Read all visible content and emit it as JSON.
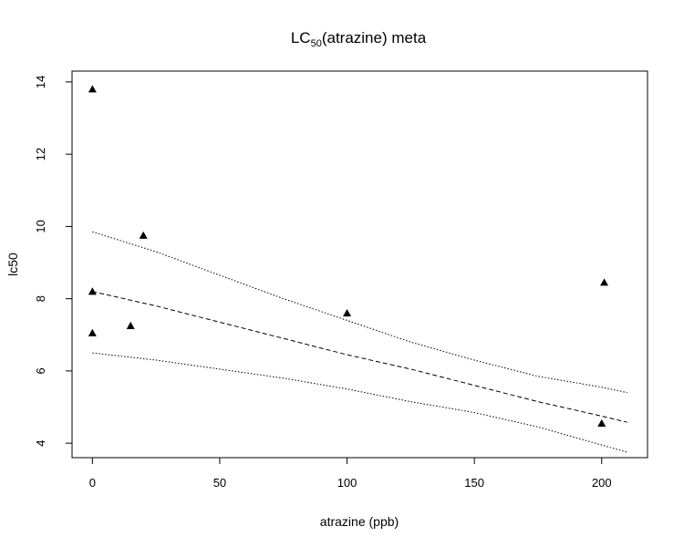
{
  "chart_data": {
    "type": "scatter",
    "title": {
      "main": "LC",
      "subscript": "50",
      "rest": "(atrazine) meta"
    },
    "xlabel": "atrazine (ppb)",
    "ylabel": "lc50",
    "xlim": [
      -8,
      218
    ],
    "ylim": [
      3.6,
      14.3
    ],
    "xticks": [
      0,
      50,
      100,
      150,
      200
    ],
    "yticks": [
      4,
      6,
      8,
      10,
      12,
      14
    ],
    "grid": false,
    "marker": "filled-triangle",
    "points": [
      {
        "x": 0,
        "y": 13.8
      },
      {
        "x": 0,
        "y": 8.2
      },
      {
        "x": 0,
        "y": 7.05
      },
      {
        "x": 15,
        "y": 7.25
      },
      {
        "x": 20,
        "y": 9.75
      },
      {
        "x": 100,
        "y": 7.6
      },
      {
        "x": 200,
        "y": 4.55
      },
      {
        "x": 201,
        "y": 8.45
      }
    ],
    "series": [
      {
        "style": "dashed",
        "x": [
          0,
          25,
          50,
          75,
          100,
          125,
          150,
          175,
          200,
          210
        ],
        "y": [
          8.2,
          7.8,
          7.35,
          6.9,
          6.45,
          6.05,
          5.6,
          5.15,
          4.75,
          4.58
        ]
      },
      {
        "style": "dotted",
        "x": [
          0,
          25,
          50,
          75,
          100,
          125,
          150,
          175,
          200,
          210
        ],
        "y": [
          9.85,
          9.3,
          8.65,
          8.0,
          7.4,
          6.8,
          6.3,
          5.85,
          5.55,
          5.4
        ]
      },
      {
        "style": "dotted",
        "x": [
          0,
          25,
          50,
          75,
          100,
          125,
          150,
          175,
          200,
          210
        ],
        "y": [
          6.5,
          6.3,
          6.05,
          5.8,
          5.5,
          5.15,
          4.85,
          4.45,
          3.95,
          3.75
        ]
      }
    ]
  }
}
